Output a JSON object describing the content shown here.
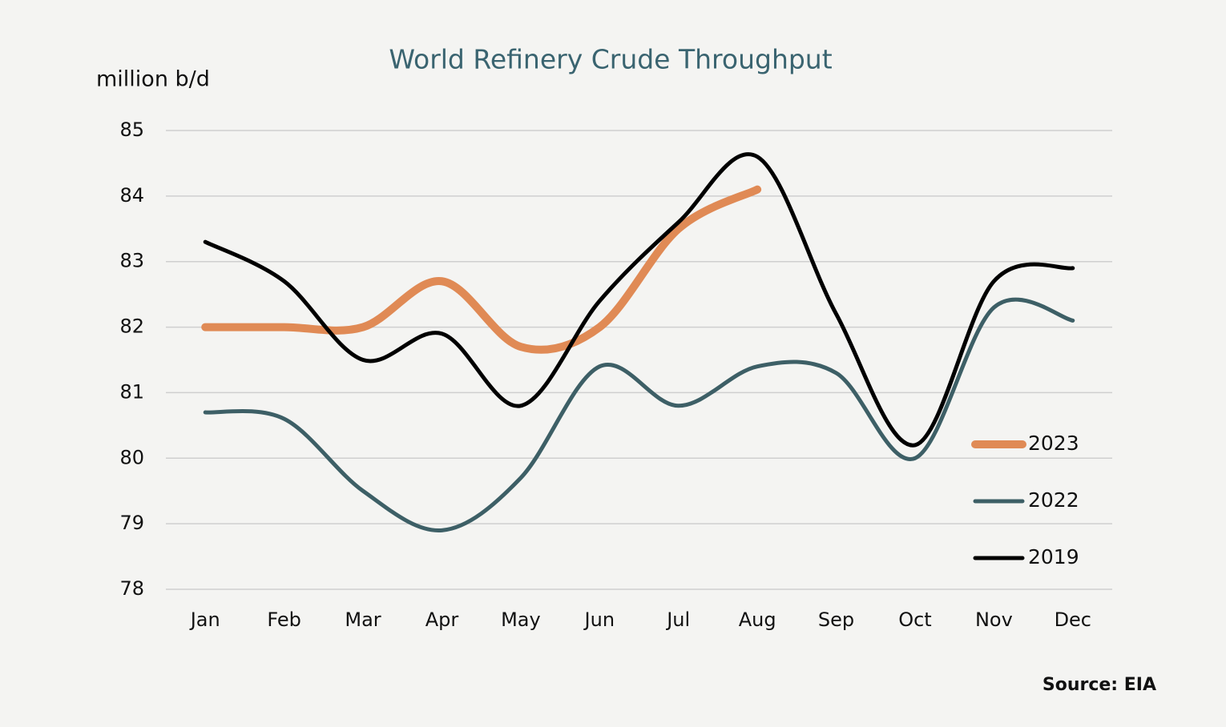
{
  "chart_data": {
    "type": "line",
    "title": "World Refinery Crude Throughput",
    "y_label": "million b/d",
    "source": "Source: EIA",
    "categories": [
      "Jan",
      "Feb",
      "Mar",
      "Apr",
      "May",
      "Jun",
      "Jul",
      "Aug",
      "Sep",
      "Oct",
      "Nov",
      "Dec"
    ],
    "series": [
      {
        "name": "2023",
        "color": "#e08a55",
        "values": [
          82.0,
          82.0,
          82.0,
          82.7,
          81.7,
          82.0,
          83.5,
          84.1,
          null,
          null,
          null,
          null
        ]
      },
      {
        "name": "2022",
        "color": "#3d5f66",
        "values": [
          80.7,
          80.6,
          79.5,
          78.9,
          79.7,
          81.4,
          80.8,
          81.4,
          81.3,
          80.0,
          82.3,
          82.1
        ]
      },
      {
        "name": "2019",
        "color": "#000000",
        "values": [
          83.3,
          82.7,
          81.5,
          81.9,
          80.8,
          82.4,
          83.6,
          84.6,
          82.2,
          80.2,
          82.7,
          82.9
        ]
      }
    ],
    "ylim": [
      78,
      85
    ],
    "yticks": [
      78,
      79,
      80,
      81,
      82,
      83,
      84,
      85
    ],
    "grid": true,
    "legend": "lower right"
  }
}
